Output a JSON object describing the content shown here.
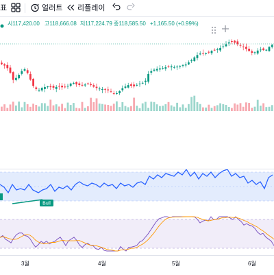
{
  "toolbar": {
    "partial_label": "표",
    "indicators_icon": "grid-icon",
    "alert_label": "얼러트",
    "replay_label": "리플레이",
    "undo_icon": "undo-icon",
    "redo_icon": "redo-icon"
  },
  "ohlc": {
    "open": "시117,420.00",
    "high": "고118,666.08",
    "low": "저117,224.79",
    "close": "종118,585.50",
    "change": "+1,165.50 (+0.99%)"
  },
  "rsi_panel": {
    "bull_label": "Bull"
  },
  "time_axis": {
    "labels": [
      "3월",
      "4월",
      "5월",
      "6월"
    ]
  },
  "colors": {
    "up": "#089981",
    "down": "#f23645",
    "rsi_line": "#2962ff",
    "stoch_line": "#7e57c2",
    "stoch_signal": "#ff9800"
  },
  "chart_data": {
    "type": "candlestick",
    "volume_colors": [
      "up",
      "down"
    ]
  }
}
